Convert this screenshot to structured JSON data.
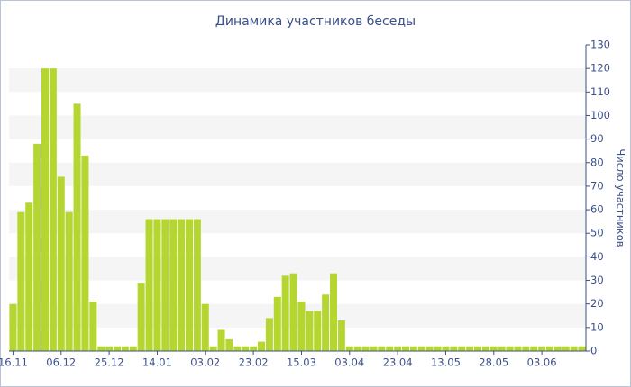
{
  "chart_data": {
    "type": "bar",
    "title": "Динамика участников беседы",
    "y_label": "Число участников",
    "categories": [
      "16.11",
      null,
      null,
      null,
      null,
      null,
      "06.12",
      null,
      null,
      null,
      null,
      null,
      "25.12",
      null,
      null,
      null,
      null,
      null,
      "14.01",
      null,
      null,
      null,
      null,
      null,
      "03.02",
      null,
      null,
      null,
      null,
      null,
      "23.02",
      null,
      null,
      null,
      null,
      null,
      "15.03",
      null,
      null,
      null,
      null,
      null,
      "03.04",
      null,
      null,
      null,
      null,
      null,
      "23.04",
      null,
      null,
      null,
      null,
      null,
      "13.05",
      null,
      null,
      null,
      null,
      null,
      "28.05",
      null,
      null,
      null,
      null,
      null,
      "03.06",
      null,
      null,
      null,
      null,
      null
    ],
    "values": [
      20,
      59,
      63,
      88,
      120,
      120,
      74,
      59,
      105,
      83,
      21,
      2,
      2,
      2,
      2,
      2,
      29,
      56,
      56,
      56,
      56,
      56,
      56,
      56,
      20,
      2,
      9,
      5,
      2,
      2,
      2,
      4,
      14,
      23,
      32,
      33,
      21,
      17,
      17,
      24,
      33,
      13,
      2,
      2,
      2,
      2,
      2,
      2,
      2,
      2,
      2,
      2,
      2,
      2,
      2,
      2,
      2,
      2,
      2,
      2,
      2,
      2,
      2,
      2,
      2,
      2,
      2,
      2,
      2,
      2,
      2,
      2
    ],
    "color": "#b5d631",
    "ylim": [
      0,
      130
    ],
    "yticks": [
      0,
      10,
      20,
      30,
      40,
      50,
      60,
      70,
      80,
      90,
      100,
      110,
      120,
      130
    ],
    "y_axis_side": "right",
    "grid": "bands"
  }
}
